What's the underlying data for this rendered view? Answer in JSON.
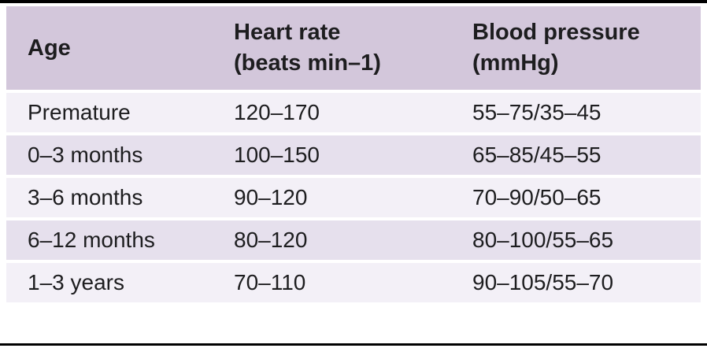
{
  "theme": {
    "header_bg": "#d3c7db",
    "row_odd": "#f3f0f7",
    "row_even": "#e6e0ed",
    "rule": "#000000",
    "text": "#1d1d1f",
    "page_bg": "#ffffff"
  },
  "table": {
    "headers": [
      {
        "line1": "Age",
        "line2": ""
      },
      {
        "line1": "Heart rate",
        "line2": "(beats min–1)"
      },
      {
        "line1": "Blood pressure",
        "line2": "(mmHg)"
      }
    ],
    "rows": [
      {
        "age": "Premature",
        "heart_rate": "120–170",
        "blood_pressure": "55–75/35–45"
      },
      {
        "age": "0–3 months",
        "heart_rate": "100–150",
        "blood_pressure": "65–85/45–55"
      },
      {
        "age": "3–6 months",
        "heart_rate": "90–120",
        "blood_pressure": "70–90/50–65"
      },
      {
        "age": "6–12 months",
        "heart_rate": "80–120",
        "blood_pressure": "80–100/55–65"
      },
      {
        "age": "1–3 years",
        "heart_rate": "70–110",
        "blood_pressure": "90–105/55–70"
      }
    ]
  }
}
